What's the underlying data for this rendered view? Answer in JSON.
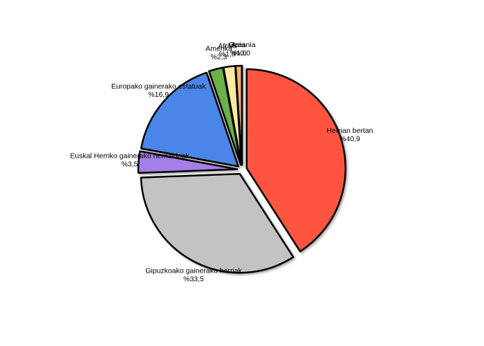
{
  "chart_data": {
    "type": "pie",
    "categories": [
      "Herrian bertan",
      "Gipuzkoako gainerako herriak",
      "Euskal Herriko gainerako herrialdeak",
      "Europako gainerako estatuak",
      "Amerika",
      "Afrika",
      "Asia",
      "Ozeania"
    ],
    "values": [
      40.9,
      33.5,
      3.5,
      16.9,
      2.3,
      1.9,
      1.0,
      0.0
    ],
    "value_labels": [
      "%40,9",
      "%33,5",
      "%3,5",
      "%16,9",
      "%2,3",
      "%1,9",
      "%1,0",
      "%0,0"
    ],
    "colors": [
      "#ff5540",
      "#c3c3c3",
      "#a57fe8",
      "#4a86e8",
      "#6ab04c",
      "#ffe9a0",
      "#f6b26b",
      "#e69138"
    ]
  }
}
